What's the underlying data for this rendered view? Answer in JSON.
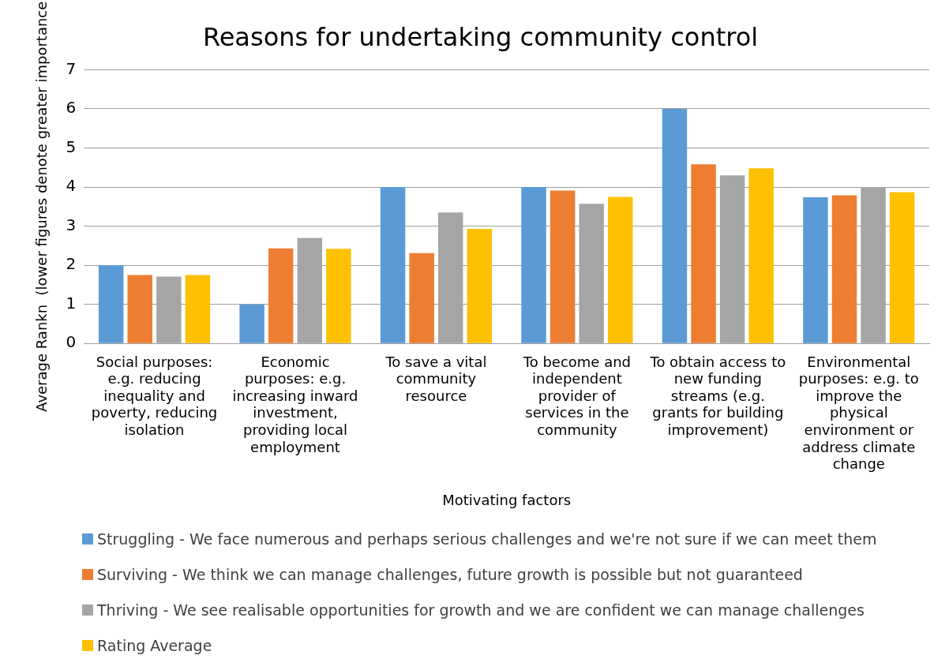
{
  "chart_data": {
    "type": "bar",
    "title": "Reasons for undertaking community control",
    "xlabel": "Motivating factors",
    "ylabel": "Average Rankn  (lower figures denote greater importance",
    "categories": [
      "Social purposes: e.g. reducing inequality and poverty, reducing isolation",
      "Economic purposes: e.g. increasing inward investment, providing local employment",
      "To save a vital community resource",
      "To become and independent provider of services in the community",
      "To obtain access to new funding streams (e.g. grants for building improvement)",
      "Environmental purposes: e.g. to improve the physical environment or address climate change"
    ],
    "series": [
      {
        "name": "Struggling - We face numerous and perhaps serious challenges and we're not sure if we can meet them",
        "color": "#5b9bd5",
        "values": [
          2,
          1,
          4,
          4,
          6,
          3.74
        ]
      },
      {
        "name": "Surviving - We think we can manage challenges, future growth is possible but not guaranteed",
        "color": "#ed7d31",
        "values": [
          1.75,
          2.43,
          2.31,
          3.91,
          4.58,
          3.79
        ]
      },
      {
        "name": "Thriving - We see realisable opportunities for growth and we are confident we can manage challenges",
        "color": "#a5a5a5",
        "values": [
          1.71,
          2.7,
          3.35,
          3.57,
          4.3,
          4
        ]
      },
      {
        "name": "Rating Average",
        "color": "#ffc000",
        "values": [
          1.75,
          2.42,
          2.93,
          3.75,
          4.48,
          3.87
        ]
      }
    ],
    "ylim": [
      0,
      7
    ],
    "yticks": [
      0,
      1,
      2,
      3,
      4,
      5,
      6,
      7
    ],
    "grid": "y",
    "legend": "bottom"
  }
}
